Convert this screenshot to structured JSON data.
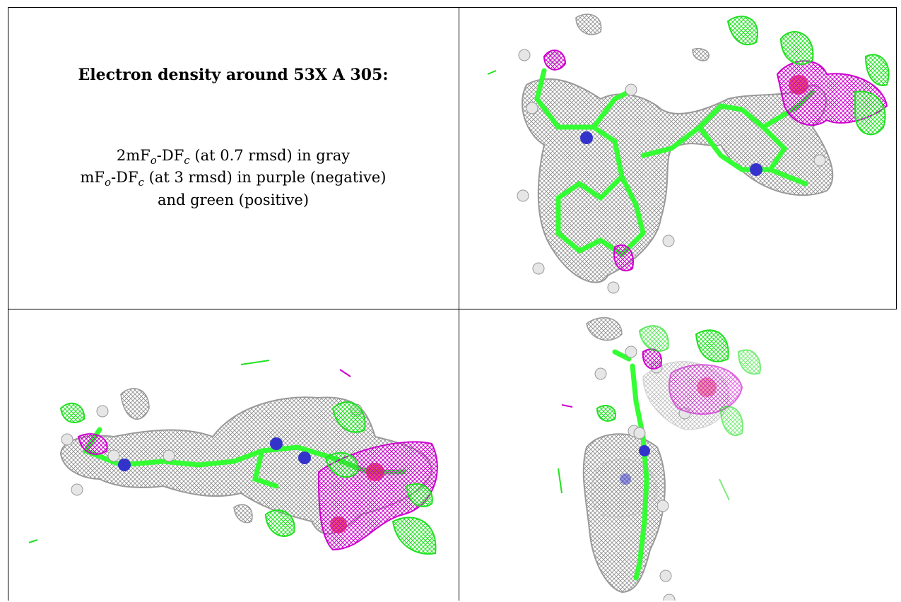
{
  "panel_text": {
    "title": "Electron density around 53X A 305:",
    "line1": {
      "lead": "2mF",
      "sub1": "o",
      "mid": "-DF",
      "sub2": "c",
      "tail": " (at 0.7 rmsd) in gray"
    },
    "line2": {
      "lead": "mF",
      "sub1": "o",
      "mid": "-DF",
      "sub2": "c",
      "tail": " (at 3 rmsd) in purple (negative)"
    },
    "line3": "and green (positive)"
  },
  "colors": {
    "mesh_gray": "#9a9a9a",
    "carbon_green": "#33ff33",
    "nitrogen_blue": "#3333cc",
    "oxygen_red": "#e8334f",
    "negative_purple": "#cc00cc",
    "positive_green": "#22e022",
    "hydrogen_white": "#e6e6e6"
  },
  "views": [
    {
      "name": "view-top",
      "description_hidden": true
    },
    {
      "name": "view-side",
      "description_hidden": true
    },
    {
      "name": "view-end",
      "description_hidden": true
    }
  ]
}
